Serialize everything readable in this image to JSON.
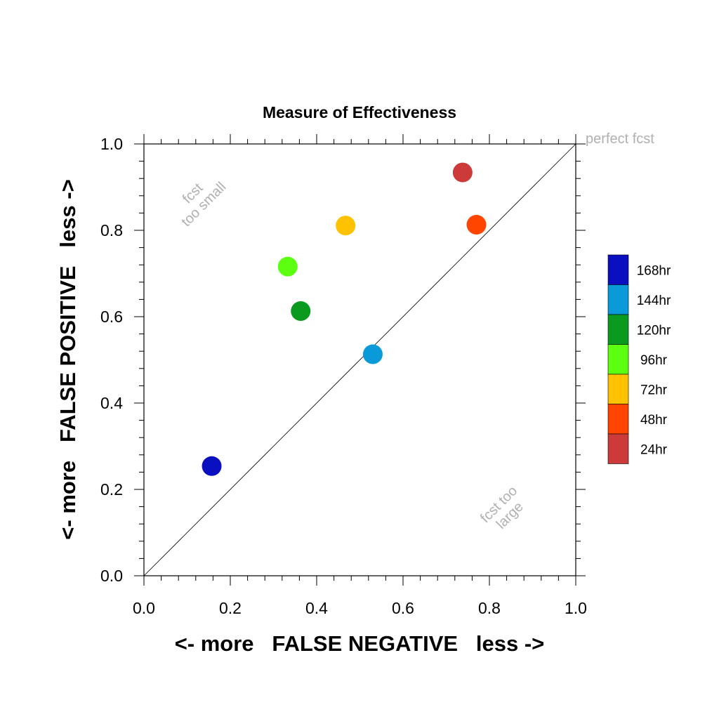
{
  "chart_data": {
    "type": "scatter",
    "title": "Measure of Effectiveness",
    "xlabel": "<- more   FALSE NEGATIVE   less ->",
    "ylabel": "<- more   FALSE POSITIVE   less ->",
    "xlim": [
      0.0,
      1.0
    ],
    "ylim": [
      0.0,
      1.0
    ],
    "x_ticks": [
      "0.0",
      "0.2",
      "0.4",
      "0.6",
      "0.8",
      "1.0"
    ],
    "y_ticks": [
      "0.0",
      "0.2",
      "0.4",
      "0.6",
      "0.8",
      "1.0"
    ],
    "grid": false,
    "reference_line": {
      "from": [
        0,
        0
      ],
      "to": [
        1,
        1
      ]
    },
    "annotations": {
      "perfect": "perfect fcst",
      "small_1": "fcst",
      "small_2": "too small",
      "large_1": "fcst too",
      "large_2": "large"
    },
    "legend_position": "right",
    "series": [
      {
        "name": "168hr",
        "color": "#0a0fbf",
        "x": 0.157,
        "y": 0.254
      },
      {
        "name": "144hr",
        "color": "#0a9ad8",
        "x": 0.53,
        "y": 0.513
      },
      {
        "name": "120hr",
        "color": "#0a9a1f",
        "x": 0.363,
        "y": 0.613
      },
      {
        "name": "96hr",
        "color": "#5cff10",
        "x": 0.333,
        "y": 0.716
      },
      {
        "name": "72hr",
        "color": "#ffc200",
        "x": 0.467,
        "y": 0.811
      },
      {
        "name": "48hr",
        "color": "#ff4500",
        "x": 0.77,
        "y": 0.813
      },
      {
        "name": "24hr",
        "color": "#cc3a3a",
        "x": 0.738,
        "y": 0.934
      }
    ]
  }
}
